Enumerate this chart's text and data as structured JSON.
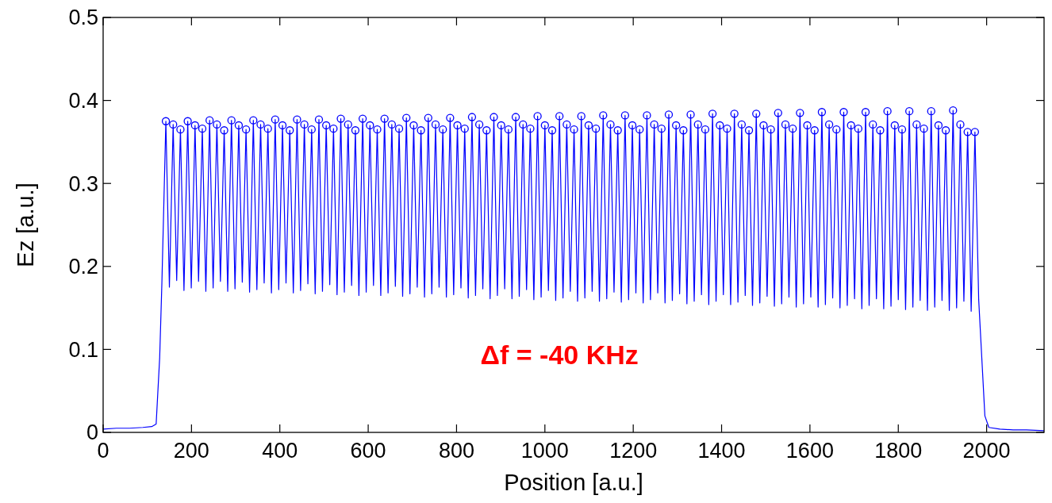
{
  "chart_data": {
    "type": "line",
    "xlabel": "Position [a.u.]",
    "ylabel": "Ez [a.u.]",
    "xlim": [
      0,
      2130
    ],
    "xticks": [
      0,
      200,
      400,
      600,
      800,
      1000,
      1200,
      1400,
      1600,
      1800,
      2000
    ],
    "ylim": [
      0,
      0.5
    ],
    "yticks": [
      0,
      0.1,
      0.2,
      0.3,
      0.4,
      0.5
    ],
    "grid": false,
    "annotations": [
      "Δf = -40 KHz"
    ],
    "series": [
      {
        "color": "#0000ff",
        "marker": "none",
        "x": [
          0,
          30,
          60,
          90,
          110,
          120,
          128,
          133,
          142,
          150,
          158.5,
          166.5,
          175,
          183,
          191.5,
          199.5,
          208,
          216,
          224.5,
          232.5,
          241,
          249,
          257.5,
          265.5,
          274,
          282,
          290.5,
          298.5,
          307,
          315,
          323.5,
          331.5,
          340,
          348,
          356.5,
          364.5,
          373,
          381,
          389.5,
          397.5,
          406,
          414,
          422.5,
          430.5,
          439,
          447,
          455.5,
          463.5,
          472,
          480,
          488.5,
          496.5,
          505,
          513,
          521.5,
          529.5,
          538,
          546,
          554.5,
          562.5,
          571,
          579,
          587.5,
          595.5,
          604,
          612,
          620.5,
          628.5,
          637,
          645,
          653.5,
          661.5,
          670,
          678,
          686.5,
          694.5,
          703,
          711,
          719.5,
          727.5,
          736,
          744,
          752.5,
          760.5,
          769,
          777,
          785.5,
          793.5,
          802,
          810,
          818.5,
          826.5,
          835,
          843,
          851.5,
          859.5,
          868,
          876,
          884.5,
          892.5,
          901,
          909,
          917.5,
          925.5,
          934,
          942,
          950.5,
          958.5,
          967,
          975,
          983.5,
          991.5,
          1000,
          1008,
          1016.5,
          1024.5,
          1033,
          1041,
          1049.5,
          1057.5,
          1066,
          1074,
          1082.5,
          1090.5,
          1099,
          1107,
          1115.5,
          1123.5,
          1132,
          1140,
          1148.5,
          1156.5,
          1165,
          1173,
          1181.5,
          1189.5,
          1198,
          1206,
          1214.5,
          1222.5,
          1231,
          1239,
          1247.5,
          1255.5,
          1264,
          1272,
          1280.5,
          1288.5,
          1297,
          1305,
          1313.5,
          1321.5,
          1330,
          1338,
          1346.5,
          1354.5,
          1363,
          1371,
          1379.5,
          1387.5,
          1396,
          1404,
          1412.5,
          1420.5,
          1429,
          1437,
          1445.5,
          1453.5,
          1462,
          1470,
          1478.5,
          1486.5,
          1495,
          1503,
          1511.5,
          1519.5,
          1528,
          1536,
          1544.5,
          1552.5,
          1561,
          1569,
          1577.5,
          1585.5,
          1594,
          1602,
          1610.5,
          1618.5,
          1627,
          1635,
          1643.5,
          1651.5,
          1660,
          1668,
          1676.5,
          1684.5,
          1693,
          1701,
          1709.5,
          1717.5,
          1726,
          1734,
          1742.5,
          1750.5,
          1759,
          1767,
          1775.5,
          1783.5,
          1792,
          1800,
          1808.5,
          1816.5,
          1825,
          1833,
          1841.5,
          1849.5,
          1858,
          1866,
          1874.5,
          1882.5,
          1891,
          1899,
          1907.5,
          1915.5,
          1924,
          1932,
          1940.5,
          1948.5,
          1957,
          1965,
          1973.5,
          1982,
          1990,
          1996,
          2005,
          2030,
          2060,
          2090,
          2130
        ],
        "values": [
          0.004,
          0.005,
          0.005,
          0.006,
          0.007,
          0.01,
          0.09,
          0.18,
          0.375,
          0.175,
          0.371,
          0.183,
          0.365,
          0.171,
          0.375,
          0.174,
          0.37,
          0.182,
          0.366,
          0.17,
          0.376,
          0.174,
          0.371,
          0.182,
          0.364,
          0.17,
          0.376,
          0.173,
          0.37,
          0.181,
          0.365,
          0.169,
          0.376,
          0.172,
          0.371,
          0.18,
          0.366,
          0.168,
          0.377,
          0.172,
          0.37,
          0.18,
          0.364,
          0.168,
          0.377,
          0.171,
          0.371,
          0.179,
          0.365,
          0.167,
          0.377,
          0.17,
          0.37,
          0.178,
          0.366,
          0.166,
          0.378,
          0.169,
          0.371,
          0.177,
          0.364,
          0.165,
          0.378,
          0.169,
          0.37,
          0.177,
          0.365,
          0.165,
          0.378,
          0.168,
          0.371,
          0.176,
          0.366,
          0.164,
          0.379,
          0.167,
          0.37,
          0.175,
          0.364,
          0.163,
          0.379,
          0.167,
          0.371,
          0.175,
          0.365,
          0.163,
          0.379,
          0.166,
          0.37,
          0.174,
          0.366,
          0.162,
          0.38,
          0.165,
          0.371,
          0.173,
          0.364,
          0.161,
          0.38,
          0.165,
          0.37,
          0.173,
          0.365,
          0.161,
          0.38,
          0.164,
          0.371,
          0.172,
          0.366,
          0.16,
          0.381,
          0.163,
          0.37,
          0.171,
          0.364,
          0.159,
          0.381,
          0.162,
          0.371,
          0.17,
          0.365,
          0.158,
          0.381,
          0.162,
          0.37,
          0.17,
          0.366,
          0.158,
          0.382,
          0.161,
          0.371,
          0.169,
          0.364,
          0.157,
          0.382,
          0.16,
          0.37,
          0.168,
          0.365,
          0.156,
          0.382,
          0.16,
          0.371,
          0.168,
          0.366,
          0.156,
          0.383,
          0.159,
          0.37,
          0.167,
          0.364,
          0.155,
          0.383,
          0.158,
          0.371,
          0.166,
          0.365,
          0.154,
          0.384,
          0.158,
          0.37,
          0.166,
          0.366,
          0.154,
          0.384,
          0.157,
          0.371,
          0.165,
          0.364,
          0.153,
          0.384,
          0.156,
          0.37,
          0.164,
          0.365,
          0.152,
          0.385,
          0.155,
          0.371,
          0.163,
          0.366,
          0.151,
          0.385,
          0.155,
          0.37,
          0.163,
          0.364,
          0.151,
          0.386,
          0.154,
          0.371,
          0.162,
          0.365,
          0.15,
          0.386,
          0.153,
          0.37,
          0.161,
          0.366,
          0.149,
          0.386,
          0.153,
          0.371,
          0.161,
          0.364,
          0.149,
          0.387,
          0.152,
          0.37,
          0.16,
          0.365,
          0.148,
          0.387,
          0.151,
          0.371,
          0.159,
          0.366,
          0.147,
          0.387,
          0.151,
          0.37,
          0.159,
          0.364,
          0.147,
          0.388,
          0.15,
          0.371,
          0.158,
          0.362,
          0.146,
          0.362,
          0.16,
          0.08,
          0.02,
          0.006,
          0.004,
          0.003,
          0.003,
          0.002
        ]
      },
      {
        "type": "scatter",
        "color": "#0000ff",
        "marker": "circle",
        "x": [
          142,
          158.5,
          175,
          191.5,
          208,
          224.5,
          241,
          257.5,
          274,
          290.5,
          307,
          323.5,
          340,
          356.5,
          373,
          389.5,
          406,
          422.5,
          439,
          455.5,
          472,
          488.5,
          505,
          521.5,
          538,
          554.5,
          571,
          587.5,
          604,
          620.5,
          637,
          653.5,
          670,
          686.5,
          703,
          719.5,
          736,
          752.5,
          769,
          785.5,
          802,
          818.5,
          835,
          851.5,
          868,
          884.5,
          901,
          917.5,
          934,
          950.5,
          967,
          983.5,
          1000,
          1016.5,
          1033,
          1049.5,
          1066,
          1082.5,
          1099,
          1115.5,
          1132,
          1148.5,
          1165,
          1181.5,
          1198,
          1214.5,
          1231,
          1247.5,
          1264,
          1280.5,
          1297,
          1313.5,
          1330,
          1346.5,
          1363,
          1379.5,
          1396,
          1412.5,
          1429,
          1445.5,
          1462,
          1478.5,
          1495,
          1511.5,
          1528,
          1544.5,
          1561,
          1577.5,
          1594,
          1610.5,
          1627,
          1643.5,
          1660,
          1676.5,
          1693,
          1709.5,
          1726,
          1742.5,
          1759,
          1775.5,
          1792,
          1808.5,
          1825,
          1841.5,
          1858,
          1874.5,
          1891,
          1907.5,
          1924,
          1940.5,
          1957,
          1973.5
        ],
        "values": [
          0.375,
          0.371,
          0.365,
          0.375,
          0.37,
          0.366,
          0.376,
          0.371,
          0.364,
          0.376,
          0.37,
          0.365,
          0.376,
          0.371,
          0.366,
          0.377,
          0.37,
          0.364,
          0.377,
          0.371,
          0.365,
          0.377,
          0.37,
          0.366,
          0.378,
          0.371,
          0.364,
          0.378,
          0.37,
          0.365,
          0.378,
          0.371,
          0.366,
          0.379,
          0.37,
          0.364,
          0.379,
          0.371,
          0.365,
          0.379,
          0.37,
          0.366,
          0.38,
          0.371,
          0.364,
          0.38,
          0.37,
          0.365,
          0.38,
          0.371,
          0.366,
          0.381,
          0.37,
          0.364,
          0.381,
          0.371,
          0.365,
          0.381,
          0.37,
          0.366,
          0.382,
          0.371,
          0.364,
          0.382,
          0.37,
          0.365,
          0.382,
          0.371,
          0.366,
          0.383,
          0.37,
          0.364,
          0.383,
          0.371,
          0.365,
          0.384,
          0.37,
          0.366,
          0.384,
          0.371,
          0.364,
          0.384,
          0.37,
          0.365,
          0.385,
          0.371,
          0.366,
          0.385,
          0.37,
          0.364,
          0.386,
          0.371,
          0.365,
          0.386,
          0.37,
          0.366,
          0.386,
          0.371,
          0.364,
          0.387,
          0.37,
          0.365,
          0.387,
          0.371,
          0.366,
          0.387,
          0.37,
          0.364,
          0.388,
          0.371,
          0.362,
          0.362
        ]
      }
    ]
  }
}
